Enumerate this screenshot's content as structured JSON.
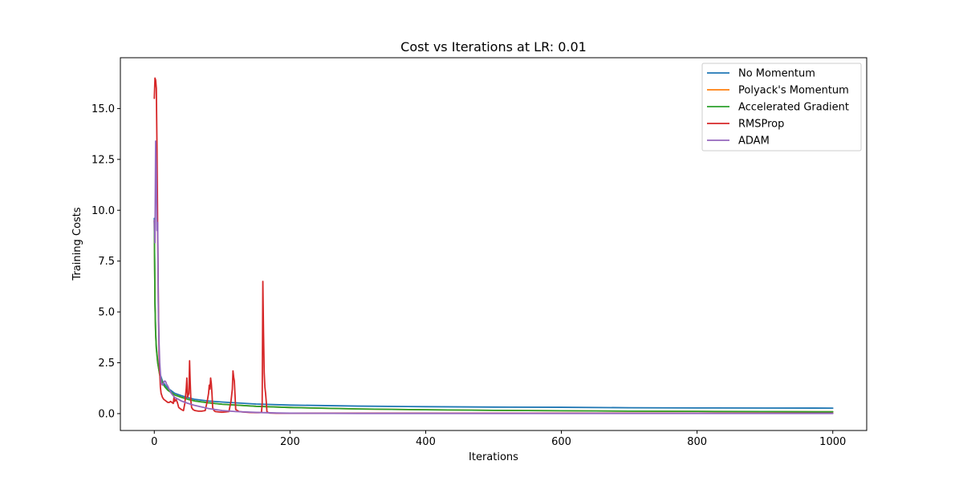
{
  "chart_data": {
    "type": "line",
    "title": "Cost vs Iterations at LR: 0.01",
    "xlabel": "Iterations",
    "ylabel": "Training Costs",
    "xlim": [
      -50,
      1050
    ],
    "ylim": [
      -0.83,
      17.5
    ],
    "xticks": [
      0,
      200,
      400,
      600,
      800,
      1000
    ],
    "xtick_labels": [
      "0",
      "200",
      "400",
      "600",
      "800",
      "1000"
    ],
    "yticks": [
      0.0,
      2.5,
      5.0,
      7.5,
      10.0,
      12.5,
      15.0
    ],
    "ytick_labels": [
      "0.0",
      "2.5",
      "5.0",
      "7.5",
      "10.0",
      "12.5",
      "15.0"
    ],
    "grid": false,
    "legend_position": "top-right",
    "series": [
      {
        "name": "No Momentum",
        "color": "#1f77b4",
        "x": [
          0,
          1,
          2,
          3,
          5,
          8,
          12,
          16,
          20,
          30,
          40,
          50,
          60,
          80,
          100,
          150,
          200,
          300,
          400,
          500,
          600,
          700,
          800,
          900,
          1000
        ],
        "y": [
          9.6,
          5.5,
          4.0,
          3.3,
          2.6,
          2.0,
          1.6,
          1.4,
          1.25,
          1.0,
          0.88,
          0.78,
          0.7,
          0.62,
          0.57,
          0.47,
          0.42,
          0.37,
          0.34,
          0.32,
          0.31,
          0.29,
          0.28,
          0.275,
          0.27
        ]
      },
      {
        "name": "Polyack's Momentum",
        "color": "#ff7f0e",
        "x": [
          0,
          1,
          2,
          3,
          5,
          8,
          12,
          16,
          20,
          30,
          40,
          50,
          60,
          80,
          100,
          150,
          200,
          300,
          400,
          500,
          600,
          700,
          800,
          900,
          1000
        ],
        "y": [
          9.5,
          5.4,
          3.9,
          3.2,
          2.5,
          1.9,
          1.5,
          1.3,
          1.15,
          0.92,
          0.8,
          0.7,
          0.62,
          0.53,
          0.46,
          0.36,
          0.3,
          0.23,
          0.19,
          0.16,
          0.14,
          0.12,
          0.11,
          0.1,
          0.09
        ]
      },
      {
        "name": "Accelerated Gradient",
        "color": "#2ca02c",
        "x": [
          0,
          1,
          2,
          3,
          5,
          8,
          12,
          16,
          20,
          30,
          40,
          50,
          60,
          80,
          100,
          150,
          200,
          300,
          400,
          500,
          600,
          700,
          800,
          900,
          1000
        ],
        "y": [
          9.5,
          5.4,
          3.9,
          3.2,
          2.5,
          1.9,
          1.5,
          1.3,
          1.15,
          0.92,
          0.8,
          0.7,
          0.62,
          0.53,
          0.46,
          0.36,
          0.3,
          0.23,
          0.19,
          0.16,
          0.14,
          0.12,
          0.11,
          0.1,
          0.09
        ]
      },
      {
        "name": "RMSProp",
        "color": "#d62728",
        "x": [
          0,
          1,
          2,
          3,
          4,
          5,
          6,
          7,
          8,
          9,
          10,
          12,
          14,
          16,
          18,
          20,
          22,
          24,
          26,
          28,
          29,
          30,
          32,
          34,
          36,
          38,
          40,
          43,
          45,
          47,
          48,
          49,
          50,
          51,
          52,
          53,
          54,
          55,
          57,
          60,
          65,
          70,
          75,
          78,
          80,
          81,
          82,
          83,
          84,
          85,
          86,
          88,
          90,
          95,
          100,
          105,
          110,
          113,
          115,
          116,
          117,
          118,
          120,
          125,
          130,
          140,
          150,
          155,
          158,
          159,
          160,
          161,
          162,
          163,
          164,
          165,
          166,
          168,
          170,
          180,
          200,
          300,
          400,
          500,
          600,
          700,
          800,
          900,
          1000
        ],
        "y": [
          15.5,
          16.5,
          16.4,
          16.0,
          13.0,
          9.0,
          5.5,
          3.0,
          2.0,
          1.3,
          1.0,
          0.8,
          0.7,
          0.65,
          0.6,
          0.55,
          0.55,
          0.6,
          0.55,
          0.5,
          0.8,
          0.6,
          0.7,
          0.55,
          0.3,
          0.25,
          0.2,
          0.15,
          0.5,
          1.2,
          1.75,
          0.8,
          0.9,
          1.0,
          2.6,
          1.5,
          0.6,
          0.3,
          0.2,
          0.15,
          0.12,
          0.12,
          0.15,
          0.6,
          1.0,
          1.4,
          1.2,
          1.75,
          1.5,
          1.0,
          0.3,
          0.15,
          0.1,
          0.08,
          0.07,
          0.08,
          0.1,
          0.6,
          1.2,
          2.1,
          1.8,
          1.6,
          0.2,
          0.1,
          0.08,
          0.06,
          0.05,
          0.05,
          0.06,
          0.5,
          6.5,
          4.0,
          2.0,
          1.3,
          1.0,
          0.6,
          0.1,
          0.05,
          0.03,
          0.02,
          0.02,
          0.02,
          0.02,
          0.02,
          0.02,
          0.02,
          0.02,
          0.02,
          0.02
        ]
      },
      {
        "name": "ADAM",
        "color": "#9467bd",
        "x": [
          0,
          1,
          2,
          3,
          4,
          5,
          6,
          7,
          8,
          10,
          12,
          14,
          15,
          16,
          17,
          18,
          20,
          22,
          25,
          30,
          40,
          50,
          60,
          80,
          100,
          120,
          150,
          170,
          180,
          200,
          300,
          400,
          500,
          600,
          700,
          800,
          900,
          1000
        ],
        "y": [
          9.5,
          8.4,
          13.4,
          12.0,
          9.0,
          9.4,
          5.0,
          3.5,
          2.5,
          1.5,
          1.4,
          1.55,
          1.6,
          1.6,
          1.55,
          1.45,
          1.35,
          1.2,
          1.0,
          0.8,
          0.62,
          0.5,
          0.4,
          0.25,
          0.15,
          0.1,
          0.06,
          0.04,
          0.03,
          0.02,
          0.01,
          0.01,
          0.01,
          0.01,
          0.01,
          0.01,
          0.01,
          0.01
        ]
      }
    ]
  }
}
